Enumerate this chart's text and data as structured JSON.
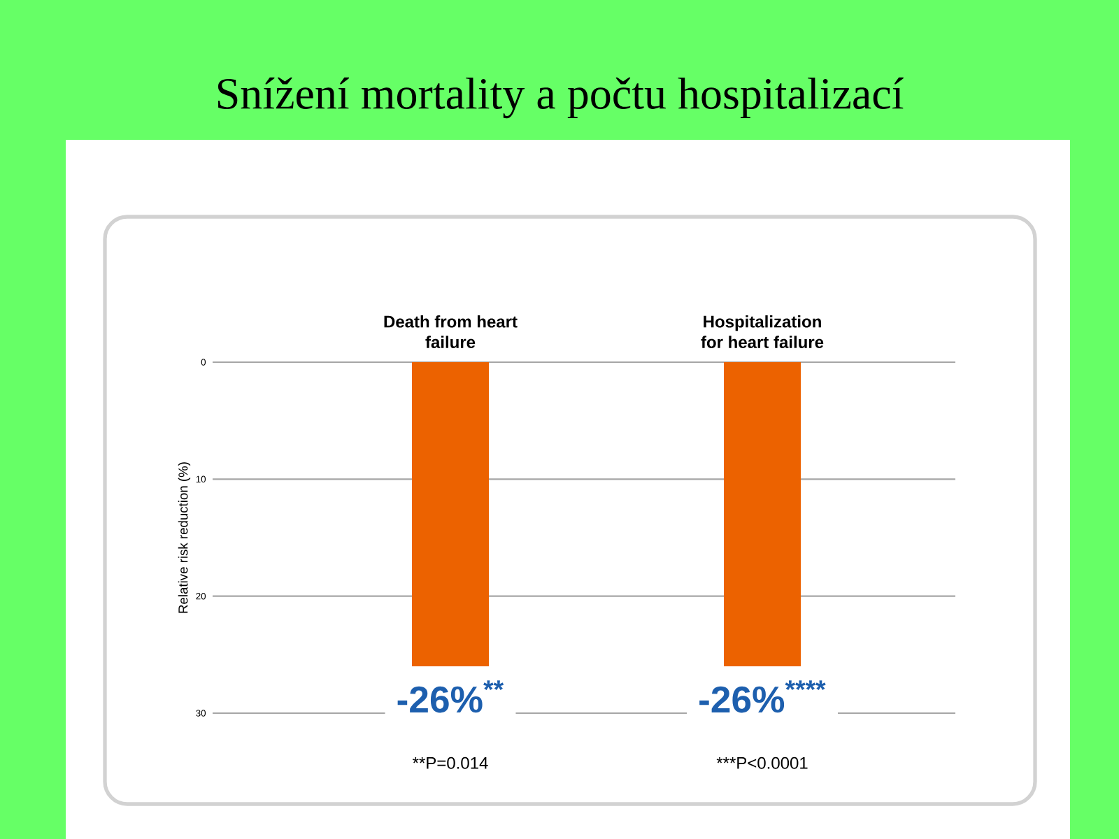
{
  "chart_data": {
    "type": "bar",
    "title": "Snížení mortality a počtu hospitalizací",
    "ylabel": "Relative risk reduction (%)",
    "categories": [
      "Death from heart failure",
      "Hospitalization for heart failure"
    ],
    "values": [
      26,
      26
    ],
    "color": "#ec6200",
    "annotations": [
      {
        "text": "-26%$^{**}$",
        "x": "Death from heart failure",
        "y": 26
      },
      {
        "text": "-26%$^{****}$",
        "x": "Hospitalization for heart failure",
        "y": 26
      },
      "**P=0.014",
      "***P<0.0001"
    ],
    "ylim": [
      30,
      0
    ],
    "yticks": [
      0,
      10,
      20,
      30
    ],
    "grid": "y"
  }
}
